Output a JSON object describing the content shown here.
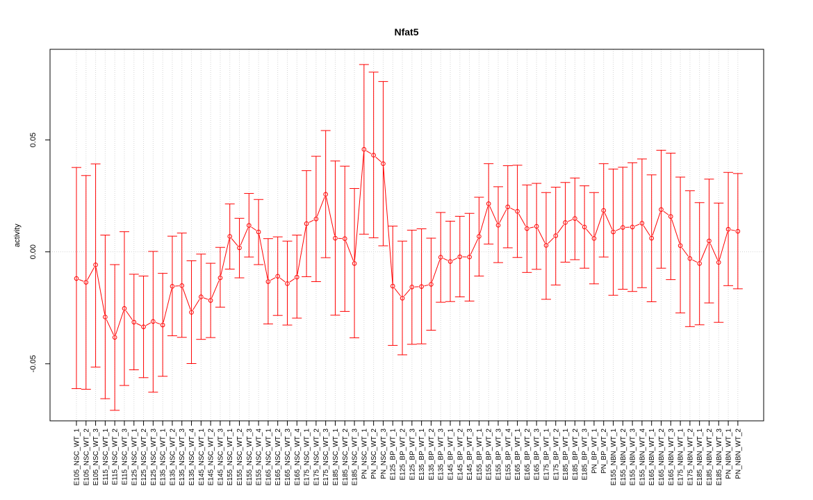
{
  "chart_data": {
    "type": "line",
    "title": "Nfat5",
    "xlabel": "",
    "ylabel": "activity",
    "ylim": [
      -0.0755,
      0.0905
    ],
    "yticks": [
      -0.05,
      0.0,
      0.05
    ],
    "ytick_labels": [
      "-0.05",
      "0.00",
      "0.05"
    ],
    "grid": true,
    "reference_line_y": 0,
    "colors": {
      "series": "#ff0000",
      "grid": "#d3d3d3",
      "frame": "#000000"
    },
    "categories": [
      "E105_NSC_WT_1",
      "E105_NSC_WT_2",
      "E105_NSC_WT_3",
      "E115_NSC_WT_1",
      "E115_NSC_WT_2",
      "E115_NSC_WT_3",
      "E125_NSC_WT_1",
      "E125_NSC_WT_2",
      "E125_NSC_WT_3",
      "E135_NSC_WT_1",
      "E135_NSC_WT_2",
      "E135_NSC_WT_3",
      "E135_NSC_WT_4",
      "E145_NSC_WT_1",
      "E145_NSC_WT_2",
      "E145_NSC_WT_3",
      "E155_NSC_WT_1",
      "E155_NSC_WT_2",
      "E155_NSC_WT_3",
      "E155_NSC_WT_4",
      "E165_NSC_WT_1",
      "E165_NSC_WT_2",
      "E165_NSC_WT_3",
      "E165_NSC_WT_4",
      "E175_NSC_WT_1",
      "E175_NSC_WT_2",
      "E175_NSC_WT_3",
      "E185_NSC_WT_1",
      "E185_NSC_WT_2",
      "E185_NSC_WT_3",
      "PN_NSC_WT_1",
      "PN_NSC_WT_2",
      "PN_NSC_WT_3",
      "E125_BP_WT_1",
      "E125_BP_WT_2",
      "E125_BP_WT_3",
      "E135_BP_WT_1",
      "E135_BP_WT_2",
      "E135_BP_WT_3",
      "E145_BP_WT_1",
      "E145_BP_WT_2",
      "E145_BP_WT_3",
      "E155_BP_WT_1",
      "E155_BP_WT_2",
      "E155_BP_WT_3",
      "E155_BP_WT_4",
      "E165_BP_WT_1",
      "E165_BP_WT_2",
      "E165_BP_WT_3",
      "E175_BP_WT_1",
      "E175_BP_WT_2",
      "E185_BP_WT_1",
      "E185_BP_WT_2",
      "E185_BP_WT_3",
      "PN_BP_WT_1",
      "PN_BP_WT_2",
      "E155_NBN_WT_1",
      "E155_NBN_WT_2",
      "E155_NBN_WT_3",
      "E155_NBN_WT_4",
      "E165_NBN_WT_1",
      "E165_NBN_WT_2",
      "E165_NBN_WT_3",
      "E175_NBN_WT_1",
      "E175_NBN_WT_2",
      "E185_NBN_WT_1",
      "E185_NBN_WT_2",
      "E185_NBN_WT_3",
      "PN_NBN_WT_1",
      "PN_NBN_WT_2"
    ],
    "series": [
      {
        "values": [
          -0.0119,
          -0.0136,
          -0.0058,
          -0.0291,
          -0.0382,
          -0.0253,
          -0.0314,
          -0.0335,
          -0.0311,
          -0.0327,
          -0.0154,
          -0.0151,
          -0.027,
          -0.0201,
          -0.0217,
          -0.0116,
          0.0069,
          0.0018,
          0.0118,
          0.0089,
          -0.0133,
          -0.0109,
          -0.0142,
          -0.0113,
          0.0126,
          0.0147,
          0.0257,
          0.0061,
          0.0059,
          -0.0052,
          0.0458,
          0.0432,
          0.0394,
          -0.0153,
          -0.0207,
          -0.0157,
          -0.0155,
          -0.0145,
          -0.0024,
          -0.0043,
          -0.0022,
          -0.0023,
          0.0069,
          0.0215,
          0.0119,
          0.0201,
          0.0181,
          0.0104,
          0.0114,
          0.0029,
          0.0072,
          0.0131,
          0.0149,
          0.0111,
          0.006,
          0.0185,
          0.0089,
          0.0109,
          0.0111,
          0.0128,
          0.0061,
          0.0189,
          0.0158,
          0.0028,
          -0.003,
          -0.0052,
          0.0049,
          -0.0047,
          0.0101,
          0.0092
        ],
        "lower": [
          -0.0611,
          -0.0614,
          -0.0515,
          -0.0656,
          -0.0708,
          -0.0597,
          -0.0527,
          -0.0562,
          -0.0627,
          -0.0556,
          -0.0375,
          -0.0382,
          -0.0499,
          -0.0391,
          -0.0383,
          -0.0247,
          -0.0077,
          -0.0116,
          -0.0023,
          -0.0057,
          -0.0322,
          -0.0284,
          -0.0327,
          -0.0296,
          -0.0111,
          -0.0133,
          -0.0026,
          -0.0283,
          -0.0266,
          -0.0384,
          0.0079,
          0.0063,
          0.0027,
          -0.0418,
          -0.046,
          -0.0413,
          -0.0411,
          -0.035,
          -0.0225,
          -0.0222,
          -0.0201,
          -0.022,
          -0.0108,
          0.0035,
          -0.0048,
          0.0018,
          -0.0025,
          -0.0092,
          -0.0078,
          -0.0212,
          -0.0148,
          -0.0046,
          -0.0035,
          -0.0073,
          -0.0143,
          -0.0023,
          -0.0194,
          -0.0167,
          -0.0177,
          -0.016,
          -0.0223,
          -0.0073,
          -0.0124,
          -0.0273,
          -0.0334,
          -0.0326,
          -0.0228,
          -0.0315,
          -0.0151,
          -0.0165
        ],
        "upper": [
          0.0377,
          0.0341,
          0.0393,
          0.0075,
          -0.0057,
          0.009,
          -0.01,
          -0.0108,
          0.0002,
          -0.0096,
          0.007,
          0.0084,
          -0.004,
          -0.001,
          -0.0051,
          0.002,
          0.0214,
          0.015,
          0.0261,
          0.0234,
          0.0059,
          0.0067,
          0.0048,
          0.0075,
          0.0363,
          0.0427,
          0.0542,
          0.0406,
          0.0383,
          0.0283,
          0.0837,
          0.0803,
          0.0761,
          0.0115,
          0.0048,
          0.0097,
          0.0103,
          0.0061,
          0.0176,
          0.0137,
          0.0159,
          0.0172,
          0.0244,
          0.0394,
          0.0291,
          0.0385,
          0.0387,
          0.0299,
          0.0306,
          0.0265,
          0.0289,
          0.031,
          0.033,
          0.0295,
          0.0265,
          0.0394,
          0.037,
          0.0378,
          0.0398,
          0.0415,
          0.0344,
          0.0454,
          0.0441,
          0.0334,
          0.0273,
          0.022,
          0.0325,
          0.0218,
          0.0355,
          0.035
        ]
      }
    ]
  }
}
